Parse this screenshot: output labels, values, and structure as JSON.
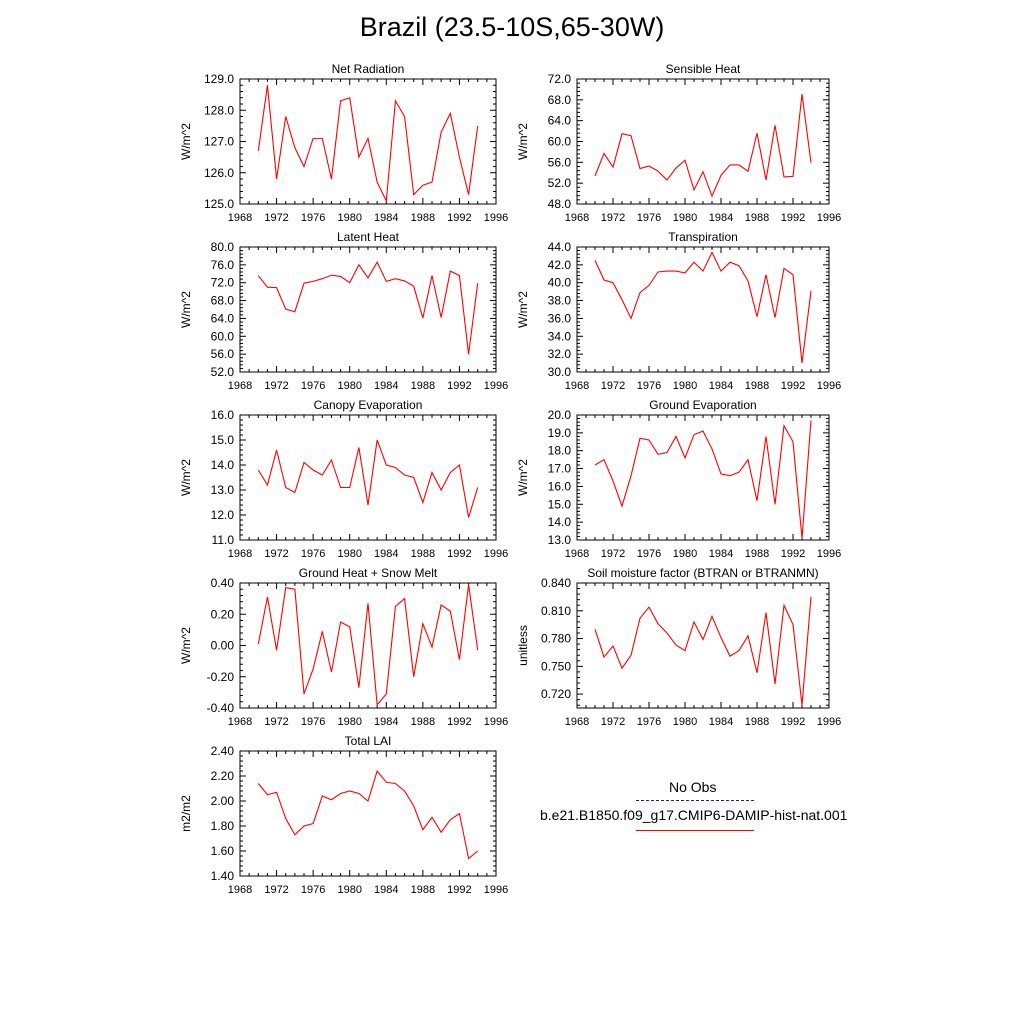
{
  "title": "Brazil (23.5-10S,65-30W)",
  "x_ticks": [
    1968,
    1972,
    1976,
    1980,
    1984,
    1988,
    1992,
    1996
  ],
  "legend": {
    "entries": [
      {
        "label": "No Obs",
        "style": "dashed",
        "color": "#1a237e"
      },
      {
        "label": "b.e21.B1850.f09_g17.CMIP6-DAMIP-hist-nat.001",
        "style": "solid",
        "color": "#ff0000"
      }
    ]
  },
  "chart_data": [
    {
      "type": "line",
      "title": "Net Radiation",
      "ylabel": "W/m^2",
      "xlim": [
        1968,
        1996
      ],
      "ylim": [
        125.0,
        129.0
      ],
      "yticks": [
        "125.0",
        "126.0",
        "127.0",
        "128.0",
        "129.0"
      ],
      "ytick_values": [
        125,
        126,
        127,
        128,
        129
      ],
      "series": [
        {
          "color": "#ff0000",
          "x": [
            1970,
            1971,
            1972,
            1973,
            1974,
            1975,
            1976,
            1977,
            1978,
            1979,
            1980,
            1981,
            1982,
            1983,
            1984,
            1985,
            1986,
            1987,
            1988,
            1989,
            1990,
            1991,
            1992,
            1993,
            1994
          ],
          "values": [
            126.7,
            128.8,
            125.8,
            127.8,
            126.8,
            126.2,
            127.1,
            127.1,
            125.8,
            128.3,
            128.4,
            126.5,
            127.1,
            125.7,
            125.1,
            128.3,
            127.8,
            125.3,
            125.6,
            125.7,
            127.3,
            127.9,
            126.5,
            125.3,
            127.5
          ]
        }
      ]
    },
    {
      "type": "line",
      "title": "Sensible Heat",
      "ylabel": "W/m^2",
      "xlim": [
        1968,
        1996
      ],
      "ylim": [
        48.0,
        72.0
      ],
      "yticks": [
        "48.0",
        "52.0",
        "56.0",
        "60.0",
        "64.0",
        "68.0",
        "72.0"
      ],
      "ytick_values": [
        48,
        52,
        56,
        60,
        64,
        68,
        72
      ],
      "series": [
        {
          "color": "#ff0000",
          "x": [
            1970,
            1971,
            1972,
            1973,
            1974,
            1975,
            1976,
            1977,
            1978,
            1979,
            1980,
            1981,
            1982,
            1983,
            1984,
            1985,
            1986,
            1987,
            1988,
            1989,
            1990,
            1991,
            1992,
            1993,
            1994
          ],
          "values": [
            53.4,
            57.7,
            55.1,
            61.5,
            61.1,
            54.8,
            55.3,
            54.3,
            52.6,
            54.9,
            56.4,
            50.7,
            54.2,
            49.5,
            53.5,
            55.5,
            55.5,
            54.3,
            61.6,
            52.6,
            63.1,
            53.2,
            53.3,
            69.1,
            55.9
          ]
        }
      ]
    },
    {
      "type": "line",
      "title": "Latent Heat",
      "ylabel": "W/m^2",
      "xlim": [
        1968,
        1996
      ],
      "ylim": [
        52.0,
        80.0
      ],
      "yticks": [
        "52.0",
        "56.0",
        "60.0",
        "64.0",
        "68.0",
        "72.0",
        "76.0",
        "80.0"
      ],
      "ytick_values": [
        52,
        56,
        60,
        64,
        68,
        72,
        76,
        80
      ],
      "series": [
        {
          "color": "#ff0000",
          "x": [
            1970,
            1971,
            1972,
            1973,
            1974,
            1975,
            1976,
            1977,
            1978,
            1979,
            1980,
            1981,
            1982,
            1983,
            1984,
            1985,
            1986,
            1987,
            1988,
            1989,
            1990,
            1991,
            1992,
            1993,
            1994
          ],
          "values": [
            73.6,
            71.0,
            70.9,
            66.1,
            65.5,
            71.9,
            72.3,
            72.9,
            73.7,
            73.4,
            72.0,
            76.0,
            73.1,
            76.6,
            72.3,
            72.9,
            72.4,
            71.2,
            64.1,
            73.6,
            64.2,
            74.6,
            73.6,
            56.0,
            71.9
          ]
        }
      ]
    },
    {
      "type": "line",
      "title": "Transpiration",
      "ylabel": "W/m^2",
      "xlim": [
        1968,
        1996
      ],
      "ylim": [
        30.0,
        44.0
      ],
      "yticks": [
        "30.0",
        "32.0",
        "34.0",
        "36.0",
        "38.0",
        "40.0",
        "42.0",
        "44.0"
      ],
      "ytick_values": [
        30,
        32,
        34,
        36,
        38,
        40,
        42,
        44
      ],
      "series": [
        {
          "color": "#ff0000",
          "x": [
            1970,
            1971,
            1972,
            1973,
            1974,
            1975,
            1976,
            1977,
            1978,
            1979,
            1980,
            1981,
            1982,
            1983,
            1984,
            1985,
            1986,
            1987,
            1988,
            1989,
            1990,
            1991,
            1992,
            1993,
            1994
          ],
          "values": [
            42.5,
            40.3,
            40.0,
            38.1,
            36.0,
            38.9,
            39.7,
            41.2,
            41.3,
            41.3,
            41.1,
            42.3,
            41.3,
            43.4,
            41.3,
            42.3,
            41.9,
            40.2,
            36.2,
            40.9,
            36.1,
            41.6,
            40.9,
            31.0,
            39.1
          ]
        }
      ]
    },
    {
      "type": "line",
      "title": "Canopy Evaporation",
      "ylabel": "W/m^2",
      "xlim": [
        1968,
        1996
      ],
      "ylim": [
        11.0,
        16.0
      ],
      "yticks": [
        "11.0",
        "12.0",
        "13.0",
        "14.0",
        "15.0",
        "16.0"
      ],
      "ytick_values": [
        11,
        12,
        13,
        14,
        15,
        16
      ],
      "series": [
        {
          "color": "#ff0000",
          "x": [
            1970,
            1971,
            1972,
            1973,
            1974,
            1975,
            1976,
            1977,
            1978,
            1979,
            1980,
            1981,
            1982,
            1983,
            1984,
            1985,
            1986,
            1987,
            1988,
            1989,
            1990,
            1991,
            1992,
            1993,
            1994
          ],
          "values": [
            13.8,
            13.2,
            14.6,
            13.1,
            12.9,
            14.1,
            13.8,
            13.6,
            14.2,
            13.1,
            13.1,
            14.7,
            12.4,
            15.0,
            14.0,
            13.9,
            13.6,
            13.5,
            12.5,
            13.7,
            13.0,
            13.7,
            14.0,
            11.9,
            13.1
          ]
        }
      ]
    },
    {
      "type": "line",
      "title": "Ground Evaporation",
      "ylabel": "W/m^2",
      "xlim": [
        1968,
        1996
      ],
      "ylim": [
        13.0,
        20.0
      ],
      "yticks": [
        "13.0",
        "14.0",
        "15.0",
        "16.0",
        "17.0",
        "18.0",
        "19.0",
        "20.0"
      ],
      "ytick_values": [
        13,
        14,
        15,
        16,
        17,
        18,
        19,
        20
      ],
      "series": [
        {
          "color": "#ff0000",
          "x": [
            1970,
            1971,
            1972,
            1973,
            1974,
            1975,
            1976,
            1977,
            1978,
            1979,
            1980,
            1981,
            1982,
            1983,
            1984,
            1985,
            1986,
            1987,
            1988,
            1989,
            1990,
            1991,
            1992,
            1993,
            1994
          ],
          "values": [
            17.2,
            17.5,
            16.3,
            14.9,
            16.6,
            18.7,
            18.6,
            17.8,
            17.9,
            18.8,
            17.6,
            18.9,
            19.1,
            18.1,
            16.7,
            16.6,
            16.8,
            17.5,
            15.2,
            18.8,
            15.0,
            19.4,
            18.5,
            13.1,
            19.7
          ]
        }
      ]
    },
    {
      "type": "line",
      "title": "Ground Heat + Snow Melt",
      "ylabel": "W/m^2",
      "xlim": [
        1968,
        1996
      ],
      "ylim": [
        -0.4,
        0.4
      ],
      "yticks": [
        "-0.40",
        "-0.20",
        "0.00",
        "0.20",
        "0.40"
      ],
      "ytick_values": [
        -0.4,
        -0.2,
        0.0,
        0.2,
        0.4
      ],
      "series": [
        {
          "color": "#ff0000",
          "x": [
            1970,
            1971,
            1972,
            1973,
            1974,
            1975,
            1976,
            1977,
            1978,
            1979,
            1980,
            1981,
            1982,
            1983,
            1984,
            1985,
            1986,
            1987,
            1988,
            1989,
            1990,
            1991,
            1992,
            1993,
            1994
          ],
          "values": [
            0.01,
            0.31,
            -0.03,
            0.37,
            0.36,
            -0.31,
            -0.15,
            0.09,
            -0.17,
            0.15,
            0.12,
            -0.27,
            0.27,
            -0.38,
            -0.31,
            0.25,
            0.3,
            -0.2,
            0.14,
            -0.01,
            0.26,
            0.22,
            -0.09,
            0.39,
            -0.03
          ]
        }
      ]
    },
    {
      "type": "line",
      "title": "Soil moisture factor (BTRAN or BTRANMN)",
      "ylabel": "unitless",
      "xlim": [
        1968,
        1996
      ],
      "ylim": [
        0.705,
        0.84
      ],
      "yticks": [
        "0.720",
        "0.750",
        "0.780",
        "0.810",
        "0.840"
      ],
      "ytick_values": [
        0.72,
        0.75,
        0.78,
        0.81,
        0.84
      ],
      "series": [
        {
          "color": "#ff0000",
          "x": [
            1970,
            1971,
            1972,
            1973,
            1974,
            1975,
            1976,
            1977,
            1978,
            1979,
            1980,
            1981,
            1982,
            1983,
            1984,
            1985,
            1986,
            1987,
            1988,
            1989,
            1990,
            1991,
            1992,
            1993,
            1994
          ],
          "values": [
            0.79,
            0.76,
            0.772,
            0.748,
            0.762,
            0.802,
            0.814,
            0.796,
            0.786,
            0.773,
            0.767,
            0.798,
            0.779,
            0.804,
            0.781,
            0.761,
            0.767,
            0.783,
            0.743,
            0.808,
            0.731,
            0.816,
            0.795,
            0.708,
            0.825
          ]
        }
      ]
    },
    {
      "type": "line",
      "title": "Total LAI",
      "ylabel": "m2/m2",
      "xlim": [
        1968,
        1996
      ],
      "ylim": [
        1.4,
        2.4
      ],
      "yticks": [
        "1.40",
        "1.60",
        "1.80",
        "2.00",
        "2.20",
        "2.40"
      ],
      "ytick_values": [
        1.4,
        1.6,
        1.8,
        2.0,
        2.2,
        2.4
      ],
      "series": [
        {
          "color": "#ff0000",
          "x": [
            1970,
            1971,
            1972,
            1973,
            1974,
            1975,
            1976,
            1977,
            1978,
            1979,
            1980,
            1981,
            1982,
            1983,
            1984,
            1985,
            1986,
            1987,
            1988,
            1989,
            1990,
            1991,
            1992,
            1993,
            1994
          ],
          "values": [
            2.14,
            2.05,
            2.07,
            1.86,
            1.73,
            1.8,
            1.82,
            2.04,
            2.01,
            2.06,
            2.08,
            2.06,
            2.0,
            2.24,
            2.15,
            2.14,
            2.08,
            1.96,
            1.77,
            1.87,
            1.75,
            1.85,
            1.9,
            1.54,
            1.6
          ]
        }
      ]
    }
  ]
}
